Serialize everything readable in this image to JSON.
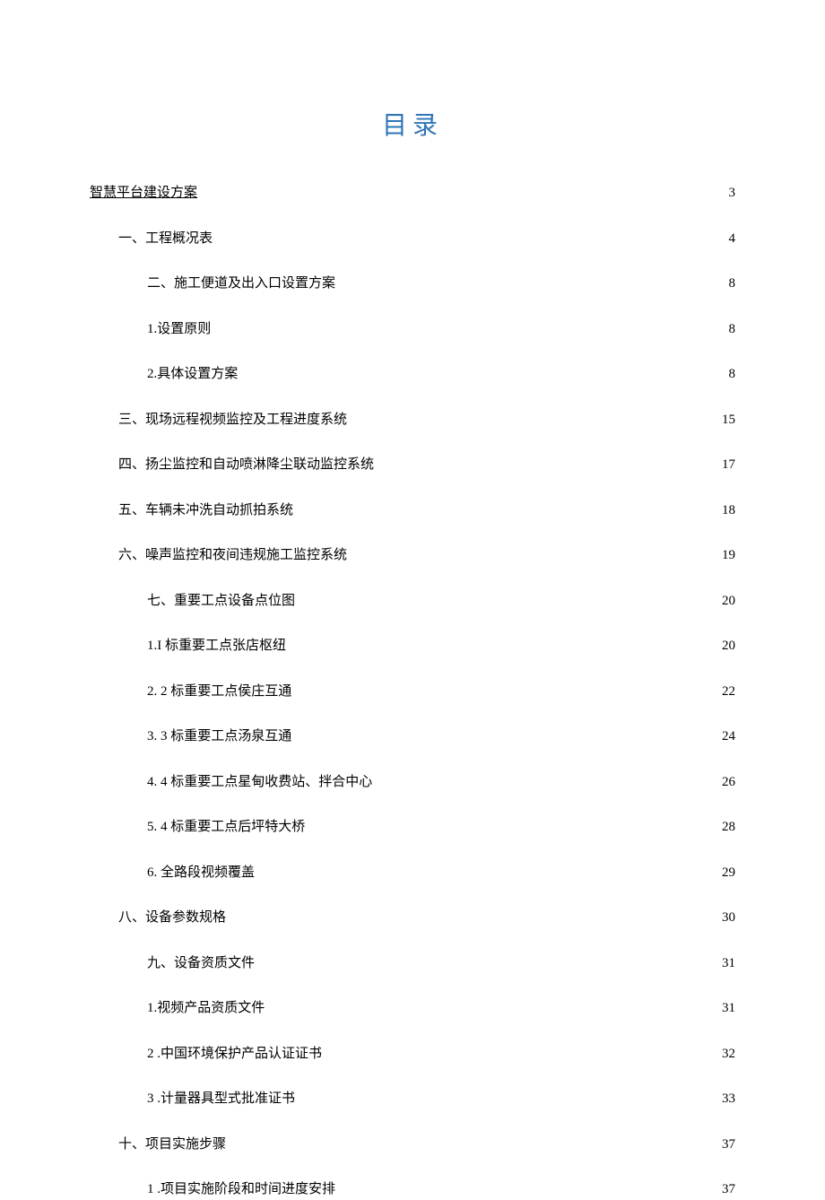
{
  "title": "目录",
  "title_color": "#2e75b6",
  "title_fontsize": 28,
  "entry_fontsize": 15,
  "text_color": "#000000",
  "background_color": "#ffffff",
  "row_spacing": 28,
  "indent_step": 32,
  "entries": [
    {
      "label": "智慧平台建设方案",
      "page": "3",
      "level": 0,
      "underlined": true
    },
    {
      "label": "一、工程概况表",
      "page": "4",
      "level": 1,
      "underlined": false
    },
    {
      "label": "二、施工便道及出入口设置方案",
      "page": "8",
      "level": 2,
      "underlined": false
    },
    {
      "label": "1.设置原则",
      "page": "8",
      "level": 2,
      "underlined": false
    },
    {
      "label": "2.具体设置方案",
      "page": "8",
      "level": 2,
      "underlined": false
    },
    {
      "label": "三、现场远程视频监控及工程进度系统",
      "page": "15",
      "level": 1,
      "underlined": false
    },
    {
      "label": "四、扬尘监控和自动喷淋降尘联动监控系统",
      "page": "17",
      "level": 1,
      "underlined": false
    },
    {
      "label": "五、车辆未冲洗自动抓拍系统",
      "page": "18",
      "level": 1,
      "underlined": false
    },
    {
      "label": "六、噪声监控和夜间违规施工监控系统",
      "page": "19",
      "level": 1,
      "underlined": false
    },
    {
      "label": "七、重要工点设备点位图",
      "page": "20",
      "level": 2,
      "underlined": false
    },
    {
      "label": "1.I 标重要工点张店枢纽",
      "page": "20",
      "level": 2,
      "underlined": false
    },
    {
      "label": "2.  2 标重要工点侯庄互通",
      "page": "22",
      "level": 2,
      "underlined": false
    },
    {
      "label": "3.  3 标重要工点汤泉互通",
      "page": "24",
      "level": 2,
      "underlined": false
    },
    {
      "label": "4.  4 标重要工点星甸收费站、拌合中心",
      "page": "26",
      "level": 2,
      "underlined": false
    },
    {
      "label": "5.  4 标重要工点后坪特大桥",
      "page": "28",
      "level": 2,
      "underlined": false
    },
    {
      "label": "6.  全路段视频覆盖",
      "page": "29",
      "level": 2,
      "underlined": false
    },
    {
      "label": "八、设备参数规格",
      "page": "30",
      "level": 1,
      "underlined": false
    },
    {
      "label": "九、设备资质文件",
      "page": "31",
      "level": 2,
      "underlined": false
    },
    {
      "label": "1.视频产品资质文件",
      "page": "31",
      "level": 2,
      "underlined": false
    },
    {
      "label": "2  .中国环境保护产品认证证书",
      "page": "32",
      "level": 2,
      "underlined": false
    },
    {
      "label": "3  .计量器具型式批准证书",
      "page": "33",
      "level": 2,
      "underlined": false
    },
    {
      "label": "十、项目实施步骤",
      "page": "37",
      "level": 1,
      "underlined": false
    },
    {
      "label": "1  .项目实施阶段和时间进度安排",
      "page": "37",
      "level": 2,
      "underlined": false
    }
  ]
}
